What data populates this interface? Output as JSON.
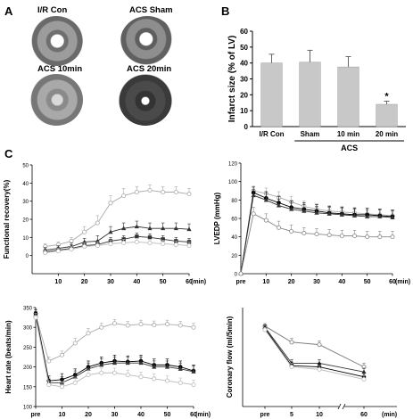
{
  "panels": {
    "A": {
      "letter": "A",
      "hearts": [
        {
          "label": "I/R Con"
        },
        {
          "label": "ACS Sham"
        },
        {
          "label": "ACS 10min"
        },
        {
          "label": "ACS 20min"
        }
      ]
    },
    "B": {
      "letter": "B"
    },
    "C": {
      "letter": "C"
    }
  },
  "chart_data": [
    {
      "id": "infarct",
      "type": "bar",
      "categories": [
        "I/R Con",
        "Sham",
        "10 min",
        "20 min"
      ],
      "values": [
        40,
        40.5,
        37.5,
        14
      ],
      "errors": [
        5.5,
        7.5,
        6.5,
        2
      ],
      "significance": [
        "",
        "",
        "",
        "*"
      ],
      "group_label": "ACS",
      "ylabel": "Infarct size (% of LV)",
      "ylim": [
        0,
        60
      ],
      "yticks": [
        0,
        10,
        20,
        30,
        40,
        50,
        60
      ],
      "bar_color": "#c8c8c8"
    },
    {
      "id": "functional",
      "type": "line",
      "ylabel": "Functional recovery(%)",
      "xlabel": "(min)",
      "ylim": [
        -10,
        50
      ],
      "yticks": [
        0,
        10,
        20,
        30,
        40,
        50
      ],
      "xticks": [
        10,
        20,
        30,
        40,
        50,
        60
      ],
      "x": [
        5,
        10,
        15,
        20,
        25,
        30,
        35,
        40,
        45,
        50,
        55,
        60
      ],
      "series": [
        {
          "marker": "open",
          "color": "#aaaaaa",
          "values": [
            5,
            6,
            8,
            13,
            18,
            29,
            33,
            35,
            36,
            35,
            35,
            34
          ],
          "err": [
            1.5,
            1.5,
            2,
            3,
            4,
            4,
            4,
            3,
            3,
            3,
            3,
            3
          ]
        },
        {
          "marker": "triangle",
          "color": "#333333",
          "values": [
            3,
            4,
            5,
            7.5,
            8,
            13,
            15,
            16,
            15,
            15,
            15,
            14.5
          ],
          "err": [
            1.5,
            1.5,
            2,
            2,
            3,
            3,
            3,
            3,
            3,
            3,
            3,
            3
          ]
        },
        {
          "marker": "square",
          "color": "#333333",
          "values": [
            2,
            3,
            4,
            5.5,
            6,
            8,
            9,
            10.5,
            10,
            9,
            8,
            7.5
          ],
          "err": [
            1.5,
            1.5,
            2,
            2,
            2,
            2,
            2,
            2,
            2,
            2,
            2,
            2
          ]
        },
        {
          "marker": "open",
          "color": "#bbbbbb",
          "values": [
            1.5,
            2.5,
            3.5,
            5,
            5.5,
            6.5,
            7,
            7.5,
            7,
            6.5,
            6,
            5.5
          ],
          "err": [
            1.5,
            1.5,
            1.5,
            2,
            2,
            2,
            2,
            2,
            2,
            2,
            2,
            2
          ]
        }
      ]
    },
    {
      "id": "lvedp",
      "type": "line",
      "ylabel": "LVEDP (mmHg)",
      "xlabel": "(min)",
      "ylim": [
        0,
        120
      ],
      "yticks": [
        0,
        20,
        40,
        60,
        80,
        100,
        120
      ],
      "xticks": [
        "pre",
        10,
        20,
        30,
        40,
        50,
        60
      ],
      "x": [
        0,
        5,
        10,
        15,
        20,
        25,
        30,
        35,
        40,
        45,
        50,
        55,
        60
      ],
      "series": [
        {
          "marker": "open",
          "color": "#aaaaaa",
          "values": [
            0,
            90,
            87,
            83,
            78,
            73,
            70,
            68,
            67,
            66,
            65,
            64,
            63
          ],
          "err": [
            0,
            5,
            6,
            6,
            6,
            6,
            6,
            6,
            6,
            6,
            6,
            6,
            6
          ]
        },
        {
          "marker": "circle",
          "color": "#000000",
          "values": [
            0,
            88,
            82,
            77,
            72,
            70,
            68,
            66,
            65,
            64,
            64,
            63,
            62
          ],
          "err": [
            0,
            6,
            7,
            7,
            7,
            7,
            7,
            7,
            7,
            7,
            7,
            7,
            7
          ]
        },
        {
          "marker": "triangle",
          "color": "#333333",
          "values": [
            0,
            85,
            80,
            74,
            70,
            68,
            66,
            65,
            64,
            63,
            62,
            62,
            61
          ],
          "err": [
            0,
            6,
            7,
            7,
            7,
            7,
            7,
            7,
            7,
            7,
            7,
            7,
            7
          ]
        },
        {
          "marker": "open",
          "color": "#888888",
          "values": [
            0,
            65,
            58,
            50,
            46,
            44,
            43,
            42,
            41,
            41,
            40,
            40,
            40
          ],
          "err": [
            0,
            7,
            7,
            7,
            7,
            6,
            6,
            6,
            6,
            6,
            6,
            6,
            6
          ]
        }
      ]
    },
    {
      "id": "heartrate",
      "type": "line",
      "ylabel": "Heart rate (beats/min)",
      "xlabel": "(min)",
      "ylim": [
        100,
        350
      ],
      "yticks": [
        100,
        150,
        200,
        250,
        300,
        350
      ],
      "xticks": [
        "pre",
        10,
        20,
        30,
        40,
        50,
        60
      ],
      "x": [
        0,
        5,
        10,
        15,
        20,
        25,
        30,
        35,
        40,
        45,
        50,
        55,
        60
      ],
      "series": [
        {
          "marker": "open",
          "color": "#aaaaaa",
          "values": [
            330,
            215,
            230,
            260,
            285,
            300,
            310,
            305,
            308,
            306,
            308,
            305,
            300
          ],
          "err": [
            10,
            10,
            10,
            12,
            12,
            10,
            10,
            10,
            10,
            10,
            10,
            10,
            10
          ]
        },
        {
          "marker": "circle",
          "color": "#000000",
          "values": [
            335,
            165,
            168,
            180,
            200,
            210,
            215,
            213,
            215,
            205,
            205,
            200,
            190
          ],
          "err": [
            10,
            12,
            15,
            15,
            15,
            15,
            15,
            15,
            15,
            15,
            15,
            15,
            15
          ]
        },
        {
          "marker": "triangle",
          "color": "#333333",
          "values": [
            330,
            160,
            160,
            175,
            195,
            205,
            210,
            210,
            210,
            200,
            200,
            195,
            188
          ],
          "err": [
            10,
            12,
            15,
            15,
            15,
            15,
            15,
            15,
            15,
            15,
            15,
            15,
            15
          ]
        },
        {
          "marker": "open",
          "color": "#bbbbbb",
          "values": [
            325,
            155,
            150,
            160,
            180,
            185,
            185,
            180,
            175,
            170,
            165,
            160,
            155
          ],
          "err": [
            10,
            10,
            12,
            12,
            12,
            12,
            12,
            12,
            12,
            12,
            12,
            12,
            12
          ]
        }
      ]
    },
    {
      "id": "coronary",
      "type": "line",
      "ylabel": "Coronary flow (ml/5min)",
      "xlabel": "(min)",
      "ylim": [
        0,
        80
      ],
      "yticks": [],
      "xticks": [
        "pre",
        5,
        10,
        60
      ],
      "x": [
        "pre",
        5,
        10,
        60
      ],
      "series": [
        {
          "marker": "open",
          "color": "#777777",
          "values": [
            65,
            52,
            50,
            32
          ],
          "err": [
            2,
            3,
            3,
            3
          ]
        },
        {
          "marker": "triangle",
          "color": "#333333",
          "values": [
            64,
            35,
            35,
            28
          ],
          "err": [
            2,
            3,
            3,
            3
          ]
        },
        {
          "marker": "circle",
          "color": "#000000",
          "values": [
            63,
            33,
            32,
            24
          ],
          "err": [
            2,
            3,
            3,
            3
          ]
        },
        {
          "marker": "open",
          "color": "#bbbbbb",
          "values": [
            62,
            32,
            30,
            22
          ],
          "err": [
            2,
            3,
            3,
            3
          ]
        }
      ]
    }
  ]
}
